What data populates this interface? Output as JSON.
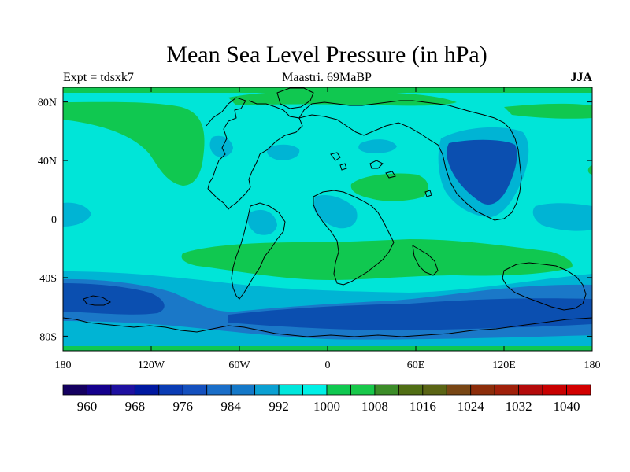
{
  "title": "Mean Sea Level Pressure (in hPa)",
  "expt_label": "Expt = tdsxk7",
  "period_label": "Maastri.  69MaBP",
  "season_label": "JJA",
  "colors": {
    "cyan": "#00e5d8",
    "lightblue": "#00b4d4",
    "blue": "#1a78c8",
    "darkblue": "#0b4fb0",
    "green": "#10c850"
  },
  "chart_data": {
    "type": "heatmap",
    "title": "Mean Sea Level Pressure (in hPa)",
    "xlabel": "",
    "ylabel": "",
    "x_ticks": [
      "180",
      "120W",
      "60W",
      "0",
      "60E",
      "120E",
      "180"
    ],
    "y_ticks": [
      "80N",
      "40N",
      "0",
      "40S",
      "80S"
    ],
    "x_range": [
      -180,
      180
    ],
    "y_range": [
      -90,
      90
    ],
    "colorbar": {
      "labels": [
        "960",
        "968",
        "976",
        "984",
        "992",
        "1000",
        "1008",
        "1016",
        "1024",
        "1032",
        "1040"
      ],
      "colors": [
        "#140060",
        "#14008c",
        "#1e10a0",
        "#0018a0",
        "#0a3cb4",
        "#1450be",
        "#1a6ec8",
        "#1478c8",
        "#0aa0d2",
        "#00e6dc",
        "#00f0e6",
        "#10c850",
        "#18c84a",
        "#3c8c28",
        "#506e14",
        "#5a6414",
        "#784614",
        "#8c2d0a",
        "#a0200a",
        "#b40a0a",
        "#c80000",
        "#d20000"
      ]
    }
  }
}
